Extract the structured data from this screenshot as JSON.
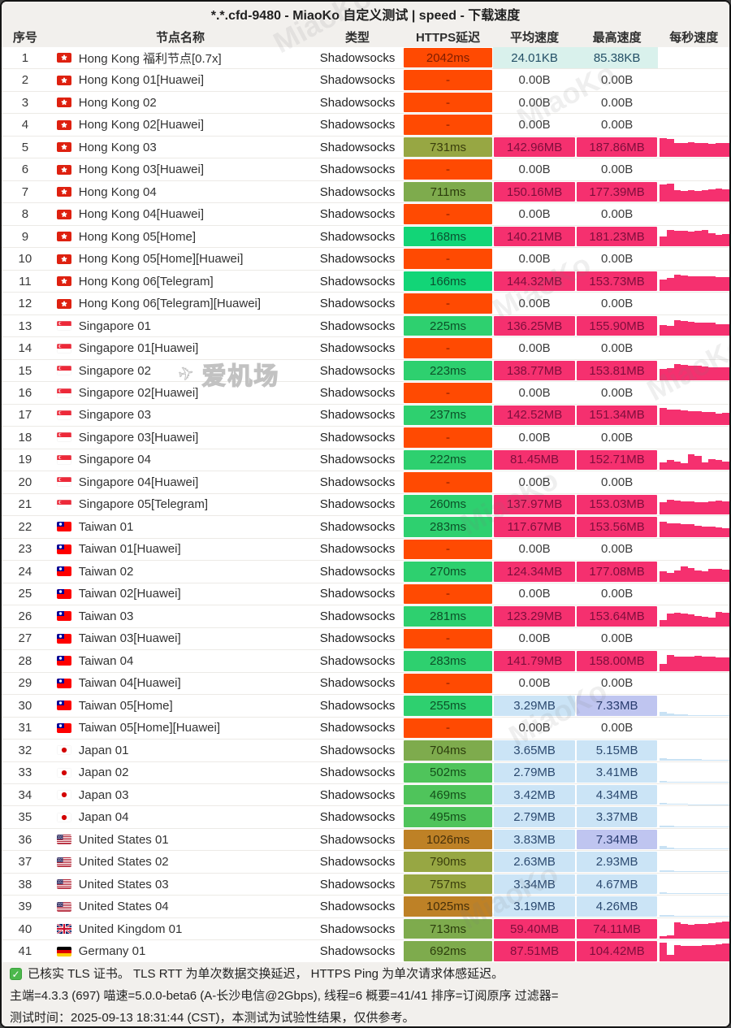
{
  "title": "*.*.cfd-9480 - MiaoKo 自定义测试 | speed - 下载速度",
  "columns": {
    "index": "序号",
    "name": "节点名称",
    "type": "类型",
    "latency": "HTTPS延迟",
    "avg_speed": "平均速度",
    "max_speed": "最高速度",
    "per_sec_speed": "每秒速度"
  },
  "colors": {
    "fail_bg": "#FF4A02",
    "green_fast": "#12D577",
    "green_ok": "#2ED06F",
    "green_mid": "#4FC45B",
    "olive": "#7EAB4D",
    "olive_dark": "#97A743",
    "amber": "#BE8126",
    "speed_pink": "#F5306F",
    "speed_blue": "#CBE4F6",
    "speed_blue_hl": "#BFC5F0",
    "speed_cyan": "#D9F1EC",
    "panel_bg": "#F2F0ED"
  },
  "watermarks": {
    "brand": "MiaoKo",
    "airport": "爱机场",
    "plane_icon": "✈"
  },
  "footer": {
    "line1": "已核实 TLS 证书。 TLS RTT 为单次数据交换延迟， HTTPS Ping 为单次请求体感延迟。",
    "line2": "主端=4.3.3 (697) 喵速=5.0.0-beta6 (A-长沙电信@2Gbps), 线程=6 概要=41/41 排序=订阅原序 过滤器=",
    "line3": "测试时间：2025-09-13 18:31:44 (CST)，本测试为试验性结果，仅供参考。"
  },
  "rows": [
    {
      "index": 1,
      "flag": "hk",
      "name": "Hong Kong 福利节点[0.7x]",
      "type": "Shadowsocks",
      "latency": "2042ms",
      "lat_style": "over",
      "avg": "24.01KB",
      "avg_style": "cyan",
      "max": "85.38KB",
      "max_style": "cyan",
      "spark": [],
      "spark_style": "none"
    },
    {
      "index": 2,
      "flag": "hk",
      "name": "Hong Kong 01[Huawei]",
      "type": "Shadowsocks",
      "latency": "-",
      "lat_style": "fail",
      "avg": "0.00B",
      "avg_style": "zero",
      "max": "0.00B",
      "max_style": "zero",
      "spark": [],
      "spark_style": "none"
    },
    {
      "index": 3,
      "flag": "hk",
      "name": "Hong Kong 02",
      "type": "Shadowsocks",
      "latency": "-",
      "lat_style": "fail",
      "avg": "0.00B",
      "avg_style": "zero",
      "max": "0.00B",
      "max_style": "zero",
      "spark": [],
      "spark_style": "none"
    },
    {
      "index": 4,
      "flag": "hk",
      "name": "Hong Kong 02[Huawei]",
      "type": "Shadowsocks",
      "latency": "-",
      "lat_style": "fail",
      "avg": "0.00B",
      "avg_style": "zero",
      "max": "0.00B",
      "max_style": "zero",
      "spark": [],
      "spark_style": "none"
    },
    {
      "index": 5,
      "flag": "hk",
      "name": "Hong Kong 03",
      "type": "Shadowsocks",
      "latency": "731ms",
      "lat_style": "g5",
      "avg": "142.96MB",
      "avg_style": "pink",
      "max": "187.86MB",
      "max_style": "pink",
      "spark": [
        0.95,
        0.9,
        0.72,
        0.7,
        0.74,
        0.72,
        0.7,
        0.68,
        0.72,
        0.7
      ],
      "spark_style": "pink"
    },
    {
      "index": 6,
      "flag": "hk",
      "name": "Hong Kong 03[Huawei]",
      "type": "Shadowsocks",
      "latency": "-",
      "lat_style": "fail",
      "avg": "0.00B",
      "avg_style": "zero",
      "max": "0.00B",
      "max_style": "zero",
      "spark": [],
      "spark_style": "none"
    },
    {
      "index": 7,
      "flag": "hk",
      "name": "Hong Kong 04",
      "type": "Shadowsocks",
      "latency": "711ms",
      "lat_style": "g4",
      "avg": "150.16MB",
      "avg_style": "pink",
      "max": "177.39MB",
      "max_style": "pink",
      "spark": [
        0.88,
        0.92,
        0.6,
        0.55,
        0.58,
        0.56,
        0.6,
        0.62,
        0.65,
        0.63
      ],
      "spark_style": "pink"
    },
    {
      "index": 8,
      "flag": "hk",
      "name": "Hong Kong 04[Huawei]",
      "type": "Shadowsocks",
      "latency": "-",
      "lat_style": "fail",
      "avg": "0.00B",
      "avg_style": "zero",
      "max": "0.00B",
      "max_style": "zero",
      "spark": [],
      "spark_style": "none"
    },
    {
      "index": 9,
      "flag": "hk",
      "name": "Hong Kong 05[Home]",
      "type": "Shadowsocks",
      "latency": "168ms",
      "lat_style": "g1",
      "avg": "140.21MB",
      "avg_style": "pink",
      "max": "181.23MB",
      "max_style": "pink",
      "spark": [
        0.5,
        0.85,
        0.8,
        0.78,
        0.75,
        0.8,
        0.82,
        0.65,
        0.6,
        0.62
      ],
      "spark_style": "pink"
    },
    {
      "index": 10,
      "flag": "hk",
      "name": "Hong Kong 05[Home][Huawei]",
      "type": "Shadowsocks",
      "latency": "-",
      "lat_style": "fail",
      "avg": "0.00B",
      "avg_style": "zero",
      "max": "0.00B",
      "max_style": "zero",
      "spark": [],
      "spark_style": "none"
    },
    {
      "index": 11,
      "flag": "hk",
      "name": "Hong Kong 06[Telegram]",
      "type": "Shadowsocks",
      "latency": "166ms",
      "lat_style": "g1",
      "avg": "144.32MB",
      "avg_style": "pink",
      "max": "153.73MB",
      "max_style": "pink",
      "spark": [
        0.6,
        0.68,
        0.82,
        0.78,
        0.76,
        0.75,
        0.74,
        0.73,
        0.72,
        0.7
      ],
      "spark_style": "pink"
    },
    {
      "index": 12,
      "flag": "hk",
      "name": "Hong Kong 06[Telegram][Huawei]",
      "type": "Shadowsocks",
      "latency": "-",
      "lat_style": "fail",
      "avg": "0.00B",
      "avg_style": "zero",
      "max": "0.00B",
      "max_style": "zero",
      "spark": [],
      "spark_style": "none"
    },
    {
      "index": 13,
      "flag": "sg",
      "name": "Singapore 01",
      "type": "Shadowsocks",
      "latency": "225ms",
      "lat_style": "g2",
      "avg": "136.25MB",
      "avg_style": "pink",
      "max": "155.90MB",
      "max_style": "pink",
      "spark": [
        0.55,
        0.5,
        0.78,
        0.73,
        0.7,
        0.68,
        0.66,
        0.65,
        0.6,
        0.58
      ],
      "spark_style": "pink"
    },
    {
      "index": 14,
      "flag": "sg",
      "name": "Singapore 01[Huawei]",
      "type": "Shadowsocks",
      "latency": "-",
      "lat_style": "fail",
      "avg": "0.00B",
      "avg_style": "zero",
      "max": "0.00B",
      "max_style": "zero",
      "spark": [],
      "spark_style": "none"
    },
    {
      "index": 15,
      "flag": "sg",
      "name": "Singapore 02",
      "type": "Shadowsocks",
      "latency": "223ms",
      "lat_style": "g2",
      "avg": "138.77MB",
      "avg_style": "pink",
      "max": "153.81MB",
      "max_style": "pink",
      "spark": [
        0.6,
        0.62,
        0.82,
        0.78,
        0.75,
        0.73,
        0.7,
        0.68,
        0.65,
        0.67
      ],
      "spark_style": "pink"
    },
    {
      "index": 16,
      "flag": "sg",
      "name": "Singapore 02[Huawei]",
      "type": "Shadowsocks",
      "latency": "-",
      "lat_style": "fail",
      "avg": "0.00B",
      "avg_style": "zero",
      "max": "0.00B",
      "max_style": "zero",
      "spark": [],
      "spark_style": "none"
    },
    {
      "index": 17,
      "flag": "sg",
      "name": "Singapore 03",
      "type": "Shadowsocks",
      "latency": "237ms",
      "lat_style": "g2",
      "avg": "142.52MB",
      "avg_style": "pink",
      "max": "151.34MB",
      "max_style": "pink",
      "spark": [
        0.85,
        0.8,
        0.78,
        0.75,
        0.72,
        0.7,
        0.68,
        0.65,
        0.6,
        0.62
      ],
      "spark_style": "pink"
    },
    {
      "index": 18,
      "flag": "sg",
      "name": "Singapore 03[Huawei]",
      "type": "Shadowsocks",
      "latency": "-",
      "lat_style": "fail",
      "avg": "0.00B",
      "avg_style": "zero",
      "max": "0.00B",
      "max_style": "zero",
      "spark": [],
      "spark_style": "none"
    },
    {
      "index": 19,
      "flag": "sg",
      "name": "Singapore 04",
      "type": "Shadowsocks",
      "latency": "222ms",
      "lat_style": "g2",
      "avg": "81.45MB",
      "avg_style": "pink",
      "max": "152.71MB",
      "max_style": "pink",
      "spark": [
        0.38,
        0.48,
        0.42,
        0.32,
        0.78,
        0.72,
        0.38,
        0.55,
        0.48,
        0.42
      ],
      "spark_style": "pink"
    },
    {
      "index": 20,
      "flag": "sg",
      "name": "Singapore 04[Huawei]",
      "type": "Shadowsocks",
      "latency": "-",
      "lat_style": "fail",
      "avg": "0.00B",
      "avg_style": "zero",
      "max": "0.00B",
      "max_style": "zero",
      "spark": [],
      "spark_style": "none"
    },
    {
      "index": 21,
      "flag": "sg",
      "name": "Singapore 05[Telegram]",
      "type": "Shadowsocks",
      "latency": "260ms",
      "lat_style": "g2",
      "avg": "137.97MB",
      "avg_style": "pink",
      "max": "153.03MB",
      "max_style": "pink",
      "spark": [
        0.6,
        0.74,
        0.7,
        0.68,
        0.66,
        0.64,
        0.62,
        0.65,
        0.7,
        0.68
      ],
      "spark_style": "pink"
    },
    {
      "index": 22,
      "flag": "tw",
      "name": "Taiwan 01",
      "type": "Shadowsocks",
      "latency": "283ms",
      "lat_style": "g2",
      "avg": "117.67MB",
      "avg_style": "pink",
      "max": "153.56MB",
      "max_style": "pink",
      "spark": [
        0.75,
        0.7,
        0.68,
        0.66,
        0.64,
        0.55,
        0.5,
        0.52,
        0.48,
        0.45
      ],
      "spark_style": "pink"
    },
    {
      "index": 23,
      "flag": "tw",
      "name": "Taiwan 01[Huawei]",
      "type": "Shadowsocks",
      "latency": "-",
      "lat_style": "fail",
      "avg": "0.00B",
      "avg_style": "zero",
      "max": "0.00B",
      "max_style": "zero",
      "spark": [],
      "spark_style": "none"
    },
    {
      "index": 24,
      "flag": "tw",
      "name": "Taiwan 02",
      "type": "Shadowsocks",
      "latency": "270ms",
      "lat_style": "g2",
      "avg": "124.34MB",
      "avg_style": "pink",
      "max": "177.08MB",
      "max_style": "pink",
      "spark": [
        0.5,
        0.45,
        0.55,
        0.75,
        0.7,
        0.55,
        0.5,
        0.65,
        0.65,
        0.6
      ],
      "spark_style": "pink"
    },
    {
      "index": 25,
      "flag": "tw",
      "name": "Taiwan 02[Huawei]",
      "type": "Shadowsocks",
      "latency": "-",
      "lat_style": "fail",
      "avg": "0.00B",
      "avg_style": "zero",
      "max": "0.00B",
      "max_style": "zero",
      "spark": [],
      "spark_style": "none"
    },
    {
      "index": 26,
      "flag": "tw",
      "name": "Taiwan 03",
      "type": "Shadowsocks",
      "latency": "281ms",
      "lat_style": "g2",
      "avg": "123.29MB",
      "avg_style": "pink",
      "max": "153.64MB",
      "max_style": "pink",
      "spark": [
        0.3,
        0.62,
        0.68,
        0.62,
        0.58,
        0.52,
        0.46,
        0.42,
        0.72,
        0.68
      ],
      "spark_style": "pink"
    },
    {
      "index": 27,
      "flag": "tw",
      "name": "Taiwan 03[Huawei]",
      "type": "Shadowsocks",
      "latency": "-",
      "lat_style": "fail",
      "avg": "0.00B",
      "avg_style": "zero",
      "max": "0.00B",
      "max_style": "zero",
      "spark": [],
      "spark_style": "none"
    },
    {
      "index": 28,
      "flag": "tw",
      "name": "Taiwan 04",
      "type": "Shadowsocks",
      "latency": "283ms",
      "lat_style": "g2",
      "avg": "141.79MB",
      "avg_style": "pink",
      "max": "158.00MB",
      "max_style": "pink",
      "spark": [
        0.35,
        0.78,
        0.72,
        0.7,
        0.72,
        0.74,
        0.72,
        0.7,
        0.68,
        0.66
      ],
      "spark_style": "pink"
    },
    {
      "index": 29,
      "flag": "tw",
      "name": "Taiwan 04[Huawei]",
      "type": "Shadowsocks",
      "latency": "-",
      "lat_style": "fail",
      "avg": "0.00B",
      "avg_style": "zero",
      "max": "0.00B",
      "max_style": "zero",
      "spark": [],
      "spark_style": "none"
    },
    {
      "index": 30,
      "flag": "tw",
      "name": "Taiwan 05[Home]",
      "type": "Shadowsocks",
      "latency": "255ms",
      "lat_style": "g2",
      "avg": "3.29MB",
      "avg_style": "blue",
      "max": "7.33MB",
      "max_style": "bluehl",
      "spark": [
        0.2,
        0.1,
        0.06,
        0.05,
        0.04,
        0.04,
        0.04,
        0.04,
        0.04,
        0.04
      ],
      "spark_style": "blue"
    },
    {
      "index": 31,
      "flag": "tw",
      "name": "Taiwan 05[Home][Huawei]",
      "type": "Shadowsocks",
      "latency": "-",
      "lat_style": "fail",
      "avg": "0.00B",
      "avg_style": "zero",
      "max": "0.00B",
      "max_style": "zero",
      "spark": [],
      "spark_style": "none"
    },
    {
      "index": 32,
      "flag": "jp",
      "name": "Japan 01",
      "type": "Shadowsocks",
      "latency": "704ms",
      "lat_style": "g4",
      "avg": "3.65MB",
      "avg_style": "blue",
      "max": "5.15MB",
      "max_style": "blue",
      "spark": [
        0.1,
        0.07,
        0.06,
        0.05,
        0.05,
        0.05,
        0.04,
        0.04,
        0.04,
        0.04
      ],
      "spark_style": "blue"
    },
    {
      "index": 33,
      "flag": "jp",
      "name": "Japan 02",
      "type": "Shadowsocks",
      "latency": "502ms",
      "lat_style": "g3",
      "avg": "2.79MB",
      "avg_style": "blue",
      "max": "3.41MB",
      "max_style": "blue",
      "spark": [
        0.08,
        0.06,
        0.05,
        0.05,
        0.04,
        0.04,
        0.04,
        0.04,
        0.04,
        0.04
      ],
      "spark_style": "blue"
    },
    {
      "index": 34,
      "flag": "jp",
      "name": "Japan 03",
      "type": "Shadowsocks",
      "latency": "469ms",
      "lat_style": "g3",
      "avg": "3.42MB",
      "avg_style": "blue",
      "max": "4.34MB",
      "max_style": "blue",
      "spark": [
        0.09,
        0.07,
        0.05,
        0.05,
        0.04,
        0.04,
        0.04,
        0.04,
        0.04,
        0.04
      ],
      "spark_style": "blue"
    },
    {
      "index": 35,
      "flag": "jp",
      "name": "Japan 04",
      "type": "Shadowsocks",
      "latency": "495ms",
      "lat_style": "g3",
      "avg": "2.79MB",
      "avg_style": "blue",
      "max": "3.37MB",
      "max_style": "blue",
      "spark": [
        0.08,
        0.06,
        0.05,
        0.05,
        0.04,
        0.04,
        0.04,
        0.04,
        0.04,
        0.04
      ],
      "spark_style": "blue"
    },
    {
      "index": 36,
      "flag": "us",
      "name": "United States 01",
      "type": "Shadowsocks",
      "latency": "1026ms",
      "lat_style": "g6",
      "avg": "3.83MB",
      "avg_style": "blue",
      "max": "7.34MB",
      "max_style": "bluehl",
      "spark": [
        0.18,
        0.12,
        0.07,
        0.05,
        0.05,
        0.04,
        0.04,
        0.04,
        0.04,
        0.04
      ],
      "spark_style": "blue"
    },
    {
      "index": 37,
      "flag": "us",
      "name": "United States 02",
      "type": "Shadowsocks",
      "latency": "790ms",
      "lat_style": "g5",
      "avg": "2.63MB",
      "avg_style": "blue",
      "max": "2.93MB",
      "max_style": "blue",
      "spark": [
        0.08,
        0.06,
        0.05,
        0.05,
        0.04,
        0.04,
        0.04,
        0.04,
        0.04,
        0.04
      ],
      "spark_style": "blue"
    },
    {
      "index": 38,
      "flag": "us",
      "name": "United States 03",
      "type": "Shadowsocks",
      "latency": "757ms",
      "lat_style": "g5",
      "avg": "3.34MB",
      "avg_style": "blue",
      "max": "4.67MB",
      "max_style": "blue",
      "spark": [
        0.09,
        0.07,
        0.05,
        0.05,
        0.04,
        0.04,
        0.04,
        0.04,
        0.04,
        0.04
      ],
      "spark_style": "blue"
    },
    {
      "index": 39,
      "flag": "us",
      "name": "United States 04",
      "type": "Shadowsocks",
      "latency": "1025ms",
      "lat_style": "g6",
      "avg": "3.19MB",
      "avg_style": "blue",
      "max": "4.26MB",
      "max_style": "blue",
      "spark": [
        0.09,
        0.06,
        0.05,
        0.05,
        0.04,
        0.04,
        0.04,
        0.04,
        0.04,
        0.04
      ],
      "spark_style": "blue"
    },
    {
      "index": 40,
      "flag": "gb",
      "name": "United Kingdom 01",
      "type": "Shadowsocks",
      "latency": "713ms",
      "lat_style": "g4",
      "avg": "59.40MB",
      "avg_style": "pink",
      "max": "74.11MB",
      "max_style": "pink",
      "spark": [
        0.12,
        0.16,
        0.82,
        0.76,
        0.72,
        0.74,
        0.76,
        0.8,
        0.85,
        0.88
      ],
      "spark_style": "pink"
    },
    {
      "index": 41,
      "flag": "de",
      "name": "Germany 01",
      "type": "Shadowsocks",
      "latency": "692ms",
      "lat_style": "g4",
      "avg": "87.51MB",
      "avg_style": "pink",
      "max": "104.42MB",
      "max_style": "pink",
      "spark": [
        0.92,
        0.34,
        0.82,
        0.78,
        0.76,
        0.78,
        0.8,
        0.82,
        0.85,
        0.88
      ],
      "spark_style": "pink"
    }
  ]
}
